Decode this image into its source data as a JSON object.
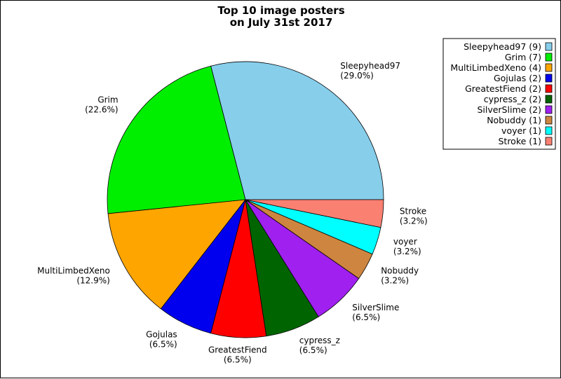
{
  "chart_data": {
    "type": "pie",
    "title": [
      "Top 10 image posters",
      "on July 31st 2017"
    ],
    "start_angle_deg": 0,
    "direction": "counterclockwise",
    "slices": [
      {
        "label": "Sleepyhead97",
        "value": 9,
        "percent": "29.0%",
        "legend": "Sleepyhead97 (9)",
        "color": "#87CEEB"
      },
      {
        "label": "Grim",
        "value": 7,
        "percent": "22.6%",
        "legend": "Grim (7)",
        "color": "#00EE00"
      },
      {
        "label": "MultiLimbedXeno",
        "value": 4,
        "percent": "12.9%",
        "legend": "MultiLimbedXeno (4)",
        "color": "#FFA500"
      },
      {
        "label": "Gojulas",
        "value": 2,
        "percent": "6.5%",
        "legend": "Gojulas (2)",
        "color": "#0000EE"
      },
      {
        "label": "GreatestFiend",
        "value": 2,
        "percent": "6.5%",
        "legend": "GreatestFiend (2)",
        "color": "#FF0000"
      },
      {
        "label": "cypress_z",
        "value": 2,
        "percent": "6.5%",
        "legend": "cypress_z (2)",
        "color": "#006400"
      },
      {
        "label": "SilverSlime",
        "value": 2,
        "percent": "6.5%",
        "legend": "SilverSlime (2)",
        "color": "#A020F0"
      },
      {
        "label": "Nobuddy",
        "value": 1,
        "percent": "3.2%",
        "legend": "Nobuddy (1)",
        "color": "#CD853F"
      },
      {
        "label": "voyer",
        "value": 1,
        "percent": "3.2%",
        "legend": "voyer (1)",
        "color": "#00FFFF"
      },
      {
        "label": "Stroke",
        "value": 1,
        "percent": "3.2%",
        "legend": "Stroke (1)",
        "color": "#FA8072"
      }
    ],
    "legend_position": "top-right"
  }
}
